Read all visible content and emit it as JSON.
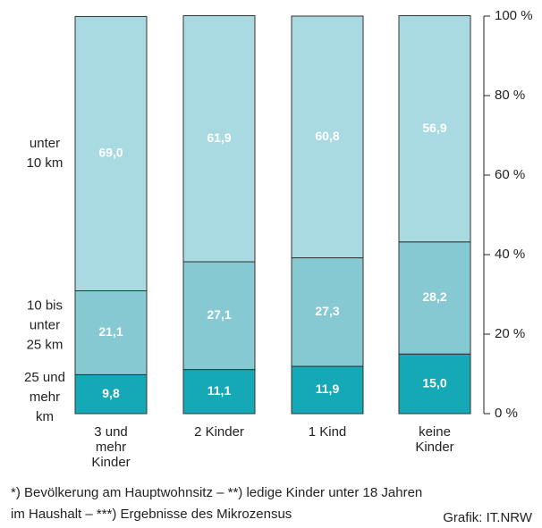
{
  "chart_data": {
    "type": "stacked_bar",
    "categories": [
      "3 und\nmehr\nKinder",
      "2 Kinder",
      "1 Kind",
      "keine\nKinder"
    ],
    "series": [
      {
        "name": "25 und\nmehr\nkm",
        "color": "#15a9b8",
        "values": [
          9.8,
          11.1,
          11.9,
          15.0
        ],
        "value_labels": [
          "9,8",
          "11,1",
          "11,9",
          "15,0"
        ]
      },
      {
        "name": "10 bis\nunter\n25 km",
        "color": "#86c9d3",
        "values": [
          21.1,
          27.1,
          27.3,
          28.2
        ],
        "value_labels": [
          "21,1",
          "27,1",
          "27,3",
          "28,2"
        ]
      },
      {
        "name": "unter\n10 km",
        "color": "#a9d9e1",
        "values": [
          69.0,
          61.9,
          60.8,
          56.9
        ],
        "value_labels": [
          "69,0",
          "61,9",
          "60,8",
          "56,9"
        ]
      }
    ],
    "ylim": [
      0,
      100
    ],
    "yticks": [
      {
        "value": 0,
        "label": "0 %"
      },
      {
        "value": 20,
        "label": "20 %"
      },
      {
        "value": 40,
        "label": "40 %"
      },
      {
        "value": 60,
        "label": "60 %"
      },
      {
        "value": 80,
        "label": "80 %"
      },
      {
        "value": 100,
        "label": "100 %"
      }
    ],
    "footnote": "*) Bevölkerung am Hauptwohnsitz – **) ledige Kinder unter 18 Jahren\nim Haushalt – ***) Ergebnisse des Mikrozensus",
    "source": "Grafik: IT.NRW"
  }
}
